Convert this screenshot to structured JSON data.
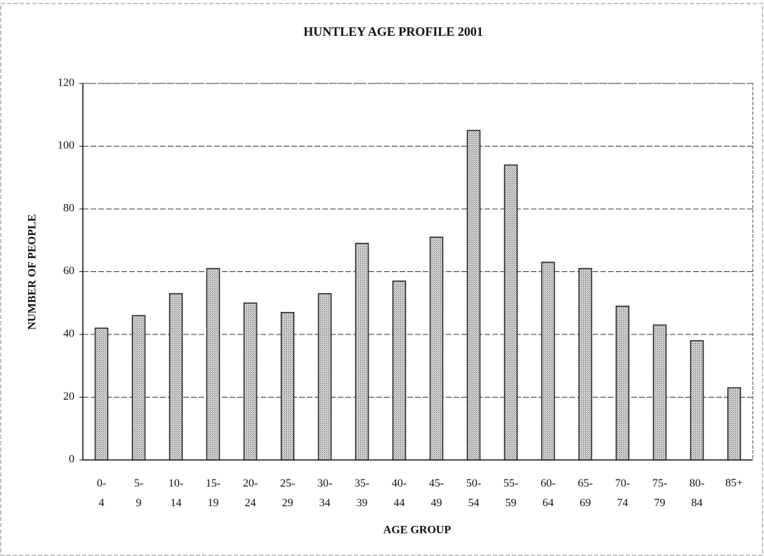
{
  "chart_data": {
    "type": "bar",
    "title": "HUNTLEY AGE PROFILE 2001",
    "x_label": "AGE GROUP",
    "y_label": "NUMBER OF PEOPLE",
    "categories": [
      "0-4",
      "5-9",
      "10-14",
      "15-19",
      "20-24",
      "25-29",
      "30-34",
      "35-39",
      "40-44",
      "45-49",
      "50-54",
      "55-59",
      "60-64",
      "65-69",
      "70-74",
      "75-79",
      "80-84",
      "85+"
    ],
    "values": [
      42,
      46,
      53,
      61,
      50,
      47,
      53,
      69,
      57,
      71,
      105,
      94,
      63,
      61,
      49,
      43,
      38,
      23
    ],
    "color": "#b8b8b8",
    "ylim": [
      0,
      120
    ],
    "yticks": [
      0,
      20,
      40,
      60,
      80,
      100,
      120
    ],
    "grid": true
  }
}
